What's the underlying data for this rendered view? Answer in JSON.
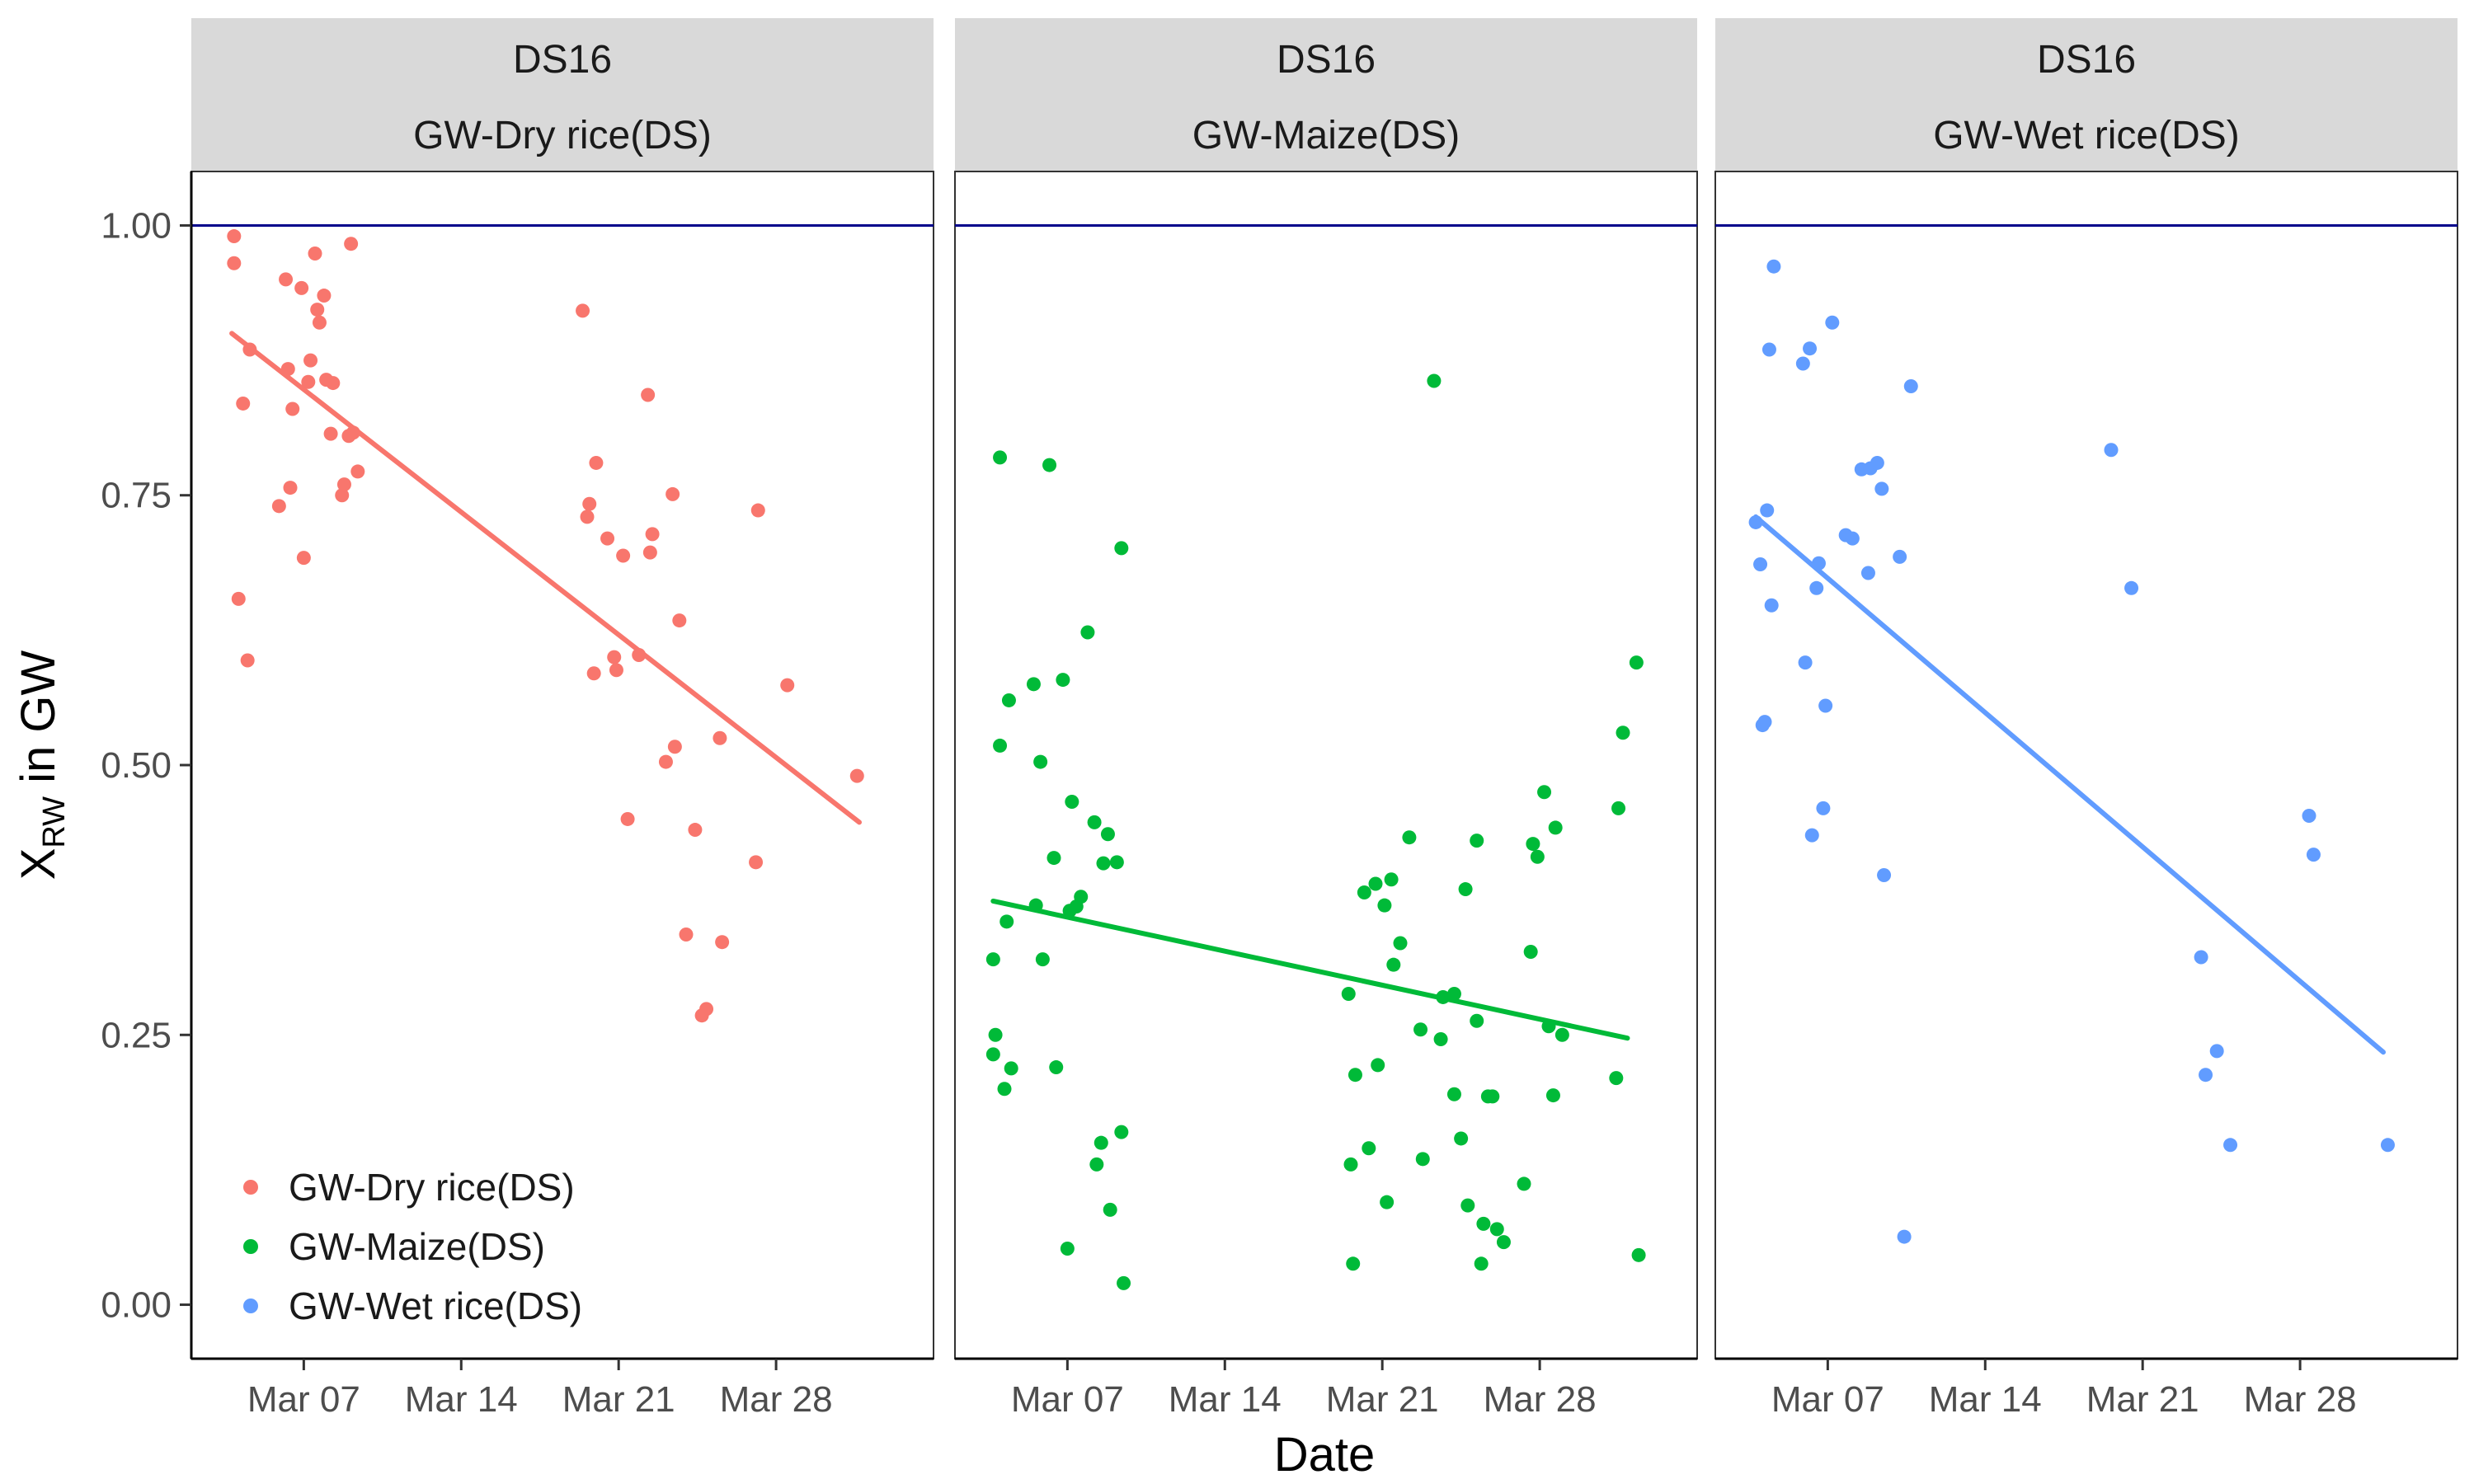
{
  "chart_data": {
    "type": "scatter",
    "layout": "faceted",
    "x_axis": {
      "title": "Date",
      "range": [
        2,
        35
      ],
      "unit": "day of March",
      "ticks": [
        {
          "value": 7,
          "label": "Mar 07"
        },
        {
          "value": 14,
          "label": "Mar 14"
        },
        {
          "value": 21,
          "label": "Mar 21"
        },
        {
          "value": 28,
          "label": "Mar 28"
        }
      ]
    },
    "y_axis": {
      "title_main": "X",
      "title_sub": "RW",
      "title_rest": " in GW",
      "range": [
        -0.05,
        1.05
      ],
      "ticks": [
        {
          "value": 0.0,
          "label": "0.00"
        },
        {
          "value": 0.25,
          "label": "0.25"
        },
        {
          "value": 0.5,
          "label": "0.50"
        },
        {
          "value": 0.75,
          "label": "0.75"
        },
        {
          "value": 1.0,
          "label": "1.00"
        }
      ]
    },
    "reference_line": {
      "y": 1.0,
      "color": "#00008B"
    },
    "legend": {
      "position": "bottom-left-inside",
      "items": [
        {
          "label": "GW-Dry rice(DS)",
          "color": "#F8766D"
        },
        {
          "label": "GW-Maize(DS)",
          "color": "#00BA38"
        },
        {
          "label": "GW-Wet rice(DS)",
          "color": "#619CFF"
        }
      ]
    },
    "facets": [
      {
        "strip_top": "DS16",
        "strip_bottom": "GW-Dry rice(DS)",
        "color": "#F8766D",
        "trend": {
          "x1": 3.8,
          "y1": 0.9,
          "x2": 31.7,
          "y2": 0.447
        },
        "points": [
          [
            3.9,
            0.99
          ],
          [
            3.9,
            0.965
          ],
          [
            4.3,
            0.835
          ],
          [
            4.5,
            0.597
          ],
          [
            4.6,
            0.885
          ],
          [
            4.1,
            0.654
          ],
          [
            5.9,
            0.74
          ],
          [
            6.2,
            0.95
          ],
          [
            6.3,
            0.867
          ],
          [
            6.4,
            0.757
          ],
          [
            6.5,
            0.83
          ],
          [
            6.9,
            0.942
          ],
          [
            7.0,
            0.692
          ],
          [
            7.2,
            0.855
          ],
          [
            7.3,
            0.875
          ],
          [
            7.5,
            0.974
          ],
          [
            7.6,
            0.922
          ],
          [
            7.7,
            0.91
          ],
          [
            7.9,
            0.935
          ],
          [
            8.0,
            0.857
          ],
          [
            8.2,
            0.807
          ],
          [
            8.3,
            0.854
          ],
          [
            8.7,
            0.75
          ],
          [
            8.8,
            0.76
          ],
          [
            9.0,
            0.805
          ],
          [
            9.1,
            0.983
          ],
          [
            9.2,
            0.808
          ],
          [
            9.4,
            0.772
          ],
          [
            19.4,
            0.921
          ],
          [
            19.6,
            0.73
          ],
          [
            19.7,
            0.742
          ],
          [
            19.9,
            0.585
          ],
          [
            20.0,
            0.78
          ],
          [
            20.5,
            0.71
          ],
          [
            20.8,
            0.6
          ],
          [
            20.9,
            0.588
          ],
          [
            21.2,
            0.694
          ],
          [
            21.4,
            0.45
          ],
          [
            21.9,
            0.602
          ],
          [
            22.3,
            0.843
          ],
          [
            22.4,
            0.697
          ],
          [
            22.5,
            0.714
          ],
          [
            23.1,
            0.503
          ],
          [
            23.4,
            0.751
          ],
          [
            23.5,
            0.517
          ],
          [
            23.7,
            0.634
          ],
          [
            24.0,
            0.343
          ],
          [
            24.4,
            0.44
          ],
          [
            24.7,
            0.268
          ],
          [
            24.9,
            0.274
          ],
          [
            25.5,
            0.525
          ],
          [
            25.6,
            0.336
          ],
          [
            27.1,
            0.41
          ],
          [
            27.2,
            0.736
          ],
          [
            28.5,
            0.574
          ],
          [
            31.6,
            0.49
          ]
        ]
      },
      {
        "strip_top": "DS16",
        "strip_bottom": "GW-Maize(DS)",
        "color": "#00BA38",
        "trend": {
          "x1": 3.7,
          "y1": 0.374,
          "x2": 31.9,
          "y2": 0.247
        },
        "points": [
          [
            3.7,
            0.32
          ],
          [
            3.7,
            0.232
          ],
          [
            3.8,
            0.25
          ],
          [
            4.0,
            0.785
          ],
          [
            4.0,
            0.518
          ],
          [
            4.2,
            0.2
          ],
          [
            4.3,
            0.355
          ],
          [
            4.4,
            0.56
          ],
          [
            4.5,
            0.219
          ],
          [
            5.5,
            0.575
          ],
          [
            5.6,
            0.37
          ],
          [
            5.8,
            0.503
          ],
          [
            5.9,
            0.32
          ],
          [
            6.2,
            0.778
          ],
          [
            6.4,
            0.414
          ],
          [
            6.5,
            0.22
          ],
          [
            6.8,
            0.579
          ],
          [
            7.0,
            0.052
          ],
          [
            7.2,
            0.466
          ],
          [
            7.1,
            0.365
          ],
          [
            7.4,
            0.369
          ],
          [
            7.6,
            0.378
          ],
          [
            7.9,
            0.623
          ],
          [
            8.2,
            0.447
          ],
          [
            8.3,
            0.13
          ],
          [
            8.5,
            0.15
          ],
          [
            8.6,
            0.409
          ],
          [
            8.8,
            0.436
          ],
          [
            8.9,
            0.088
          ],
          [
            9.2,
            0.41
          ],
          [
            9.4,
            0.16
          ],
          [
            9.4,
            0.701
          ],
          [
            9.5,
            0.02
          ],
          [
            19.5,
            0.288
          ],
          [
            19.6,
            0.13
          ],
          [
            19.7,
            0.038
          ],
          [
            19.8,
            0.213
          ],
          [
            20.2,
            0.382
          ],
          [
            20.4,
            0.145
          ],
          [
            20.7,
            0.39
          ],
          [
            20.8,
            0.222
          ],
          [
            21.1,
            0.37
          ],
          [
            21.2,
            0.095
          ],
          [
            21.4,
            0.394
          ],
          [
            21.5,
            0.315
          ],
          [
            21.8,
            0.335
          ],
          [
            22.2,
            0.433
          ],
          [
            22.7,
            0.255
          ],
          [
            22.8,
            0.135
          ],
          [
            23.3,
            0.856
          ],
          [
            23.6,
            0.246
          ],
          [
            23.7,
            0.285
          ],
          [
            24.2,
            0.288
          ],
          [
            24.2,
            0.195
          ],
          [
            24.5,
            0.154
          ],
          [
            24.7,
            0.385
          ],
          [
            24.8,
            0.092
          ],
          [
            25.2,
            0.263
          ],
          [
            25.2,
            0.43
          ],
          [
            25.4,
            0.038
          ],
          [
            25.5,
            0.075
          ],
          [
            25.7,
            0.193
          ],
          [
            25.9,
            0.193
          ],
          [
            26.1,
            0.07
          ],
          [
            26.4,
            0.058
          ],
          [
            27.3,
            0.112
          ],
          [
            27.6,
            0.327
          ],
          [
            27.7,
            0.427
          ],
          [
            27.9,
            0.415
          ],
          [
            28.2,
            0.475
          ],
          [
            28.4,
            0.258
          ],
          [
            28.6,
            0.194
          ],
          [
            28.7,
            0.442
          ],
          [
            29.0,
            0.25
          ],
          [
            31.4,
            0.21
          ],
          [
            31.5,
            0.46
          ],
          [
            31.7,
            0.53
          ],
          [
            32.3,
            0.595
          ],
          [
            32.4,
            0.046
          ]
        ]
      },
      {
        "strip_top": "DS16",
        "strip_bottom": "GW-Wet rice(DS)",
        "color": "#619CFF",
        "trend": {
          "x1": 3.8,
          "y1": 0.73,
          "x2": 31.7,
          "y2": 0.234
        },
        "points": [
          [
            3.8,
            0.725
          ],
          [
            4.0,
            0.686
          ],
          [
            4.1,
            0.537
          ],
          [
            4.2,
            0.54
          ],
          [
            4.3,
            0.736
          ],
          [
            4.4,
            0.885
          ],
          [
            4.5,
            0.648
          ],
          [
            4.6,
            0.962
          ],
          [
            5.9,
            0.872
          ],
          [
            6.0,
            0.595
          ],
          [
            6.2,
            0.886
          ],
          [
            6.3,
            0.435
          ],
          [
            6.5,
            0.664
          ],
          [
            6.6,
            0.687
          ],
          [
            6.8,
            0.46
          ],
          [
            6.9,
            0.555
          ],
          [
            7.2,
            0.91
          ],
          [
            7.8,
            0.713
          ],
          [
            8.1,
            0.71
          ],
          [
            8.5,
            0.774
          ],
          [
            8.8,
            0.678
          ],
          [
            8.9,
            0.775
          ],
          [
            9.2,
            0.78
          ],
          [
            9.4,
            0.756
          ],
          [
            9.5,
            0.398
          ],
          [
            10.2,
            0.693
          ],
          [
            10.4,
            0.063
          ],
          [
            10.7,
            0.851
          ],
          [
            19.6,
            0.792
          ],
          [
            20.5,
            0.664
          ],
          [
            23.6,
            0.322
          ],
          [
            23.8,
            0.213
          ],
          [
            24.3,
            0.235
          ],
          [
            24.9,
            0.148
          ],
          [
            28.4,
            0.453
          ],
          [
            28.6,
            0.417
          ],
          [
            31.9,
            0.148
          ]
        ]
      }
    ]
  }
}
